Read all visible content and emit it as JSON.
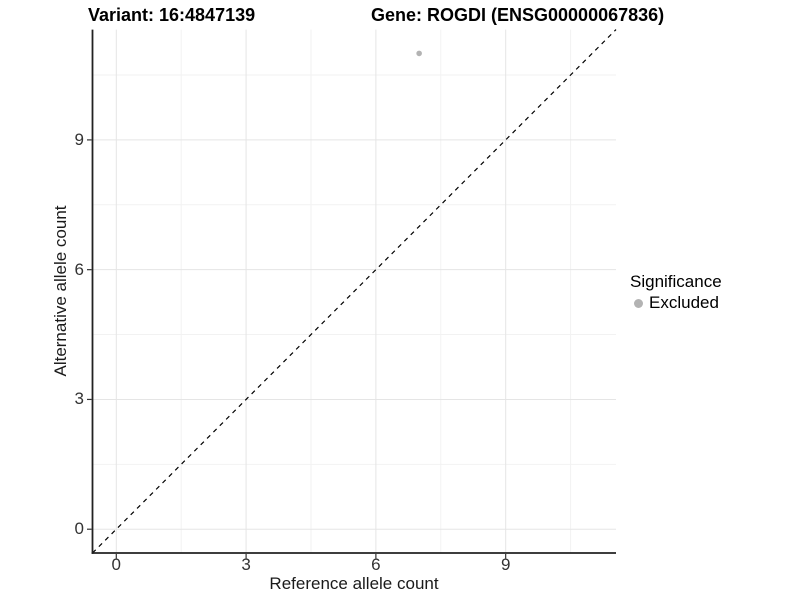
{
  "header": {
    "variant_title": "Variant: 16:4847139",
    "gene_title": "Gene: ROGDI (ENSG00000067836)"
  },
  "axes": {
    "x": {
      "label": "Reference allele count",
      "ticks": [
        0,
        3,
        6,
        9
      ]
    },
    "y": {
      "label": "Alternative allele count",
      "ticks": [
        0,
        3,
        6,
        9
      ]
    }
  },
  "legend": {
    "title": "Significance",
    "items": [
      {
        "label": "Excluded",
        "marker_color": "#b3b3b3"
      }
    ]
  },
  "colors": {
    "background": "#ffffff",
    "grid_major": "#e5e5e5",
    "grid_minor": "#f2f2f2",
    "axis_line": "#222222",
    "tick_mark": "#333333",
    "tick_text": "#333333",
    "point": "#b3b3b3",
    "dashed_line": "#000000"
  },
  "chart_data": {
    "type": "scatter",
    "title": "Variant: 16:4847139   Gene: ROGDI (ENSG00000067836)",
    "xlabel": "Reference allele count",
    "ylabel": "Alternative allele count",
    "xlim": [
      -0.55,
      11.55
    ],
    "ylim": [
      -0.55,
      11.55
    ],
    "x_ticks": [
      0,
      3,
      6,
      9
    ],
    "y_ticks": [
      0,
      3,
      6,
      9
    ],
    "x_minor_ticks": [
      1.5,
      4.5,
      7.5,
      10.5
    ],
    "y_minor_ticks": [
      1.5,
      4.5,
      7.5,
      10.5
    ],
    "grid": "major+minor",
    "legend_position": "right",
    "series": [
      {
        "name": "Excluded",
        "color": "#b3b3b3",
        "points": [
          {
            "x": 7,
            "y": 11
          }
        ]
      }
    ],
    "reference_line": {
      "equation": "y = x",
      "style": "dashed",
      "color": "#000000",
      "x0": -0.55,
      "y0": -0.55,
      "x1": 11.55,
      "y1": 11.55
    }
  }
}
